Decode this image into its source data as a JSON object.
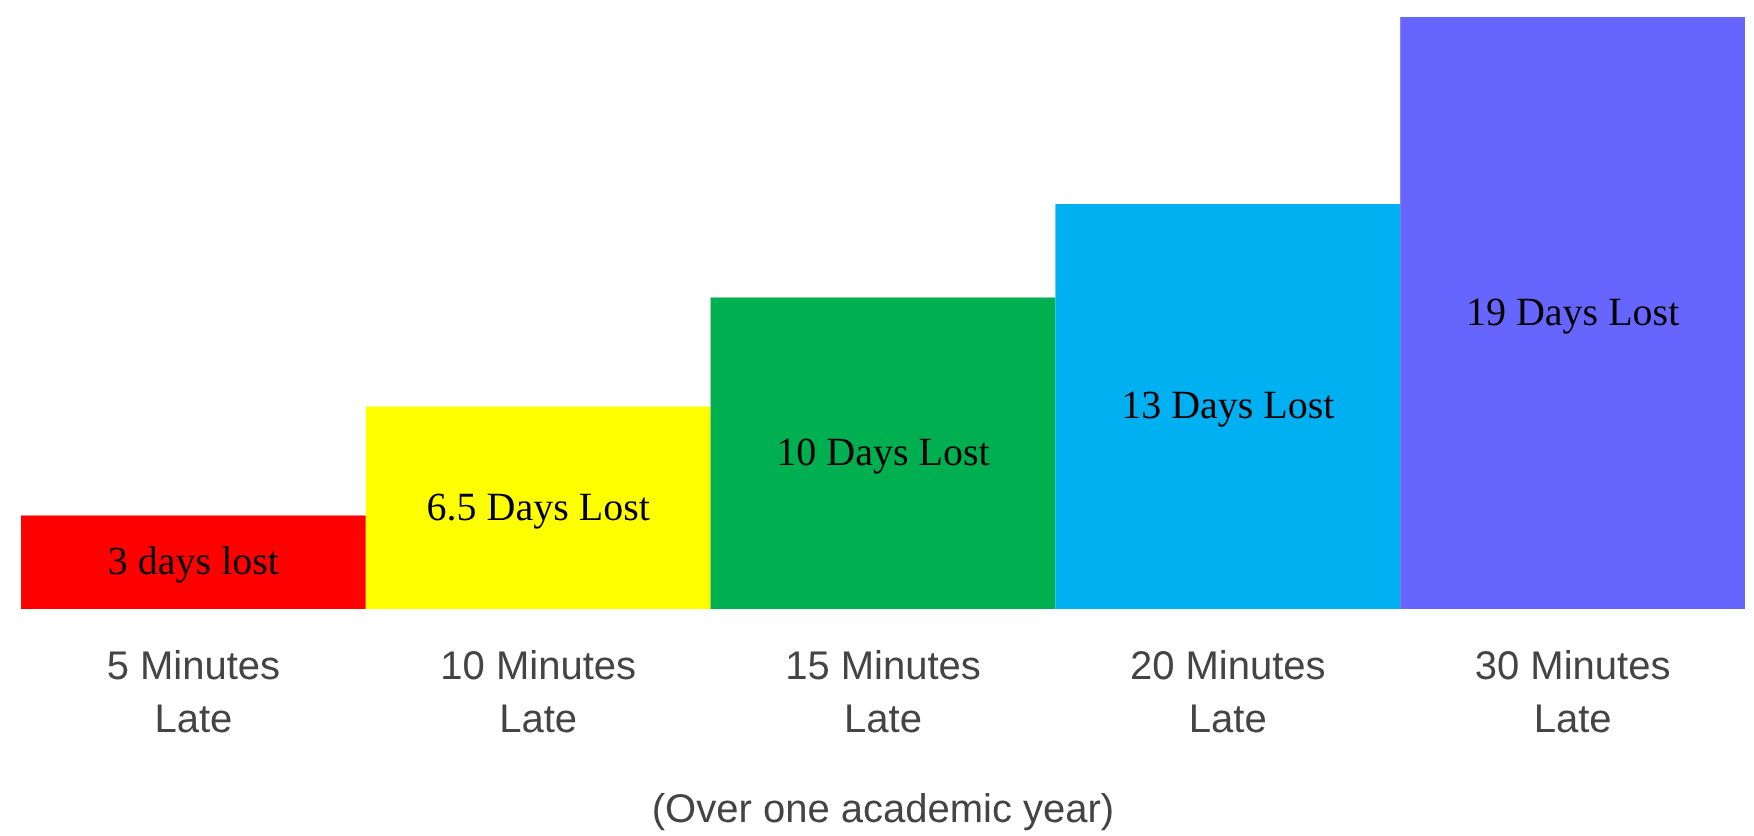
{
  "chart_data": {
    "type": "bar",
    "categories": [
      "5 Minutes Late",
      "10 Minutes Late",
      "15 Minutes Late",
      "20 Minutes Late",
      "30 Minutes Late"
    ],
    "values": [
      3,
      6.5,
      10,
      13,
      19
    ],
    "colors": [
      "#ff0000",
      "#ffff00",
      "#00b050",
      "#00b0f0",
      "#6666ff"
    ],
    "value_labels": [
      "3 days lost",
      "6.5 Days Lost",
      "10 Days Lost",
      "13 Days Lost",
      "19 Days Lost"
    ],
    "xlabel": "(Over one academic year)",
    "grid": false,
    "tick_labels": "x"
  }
}
